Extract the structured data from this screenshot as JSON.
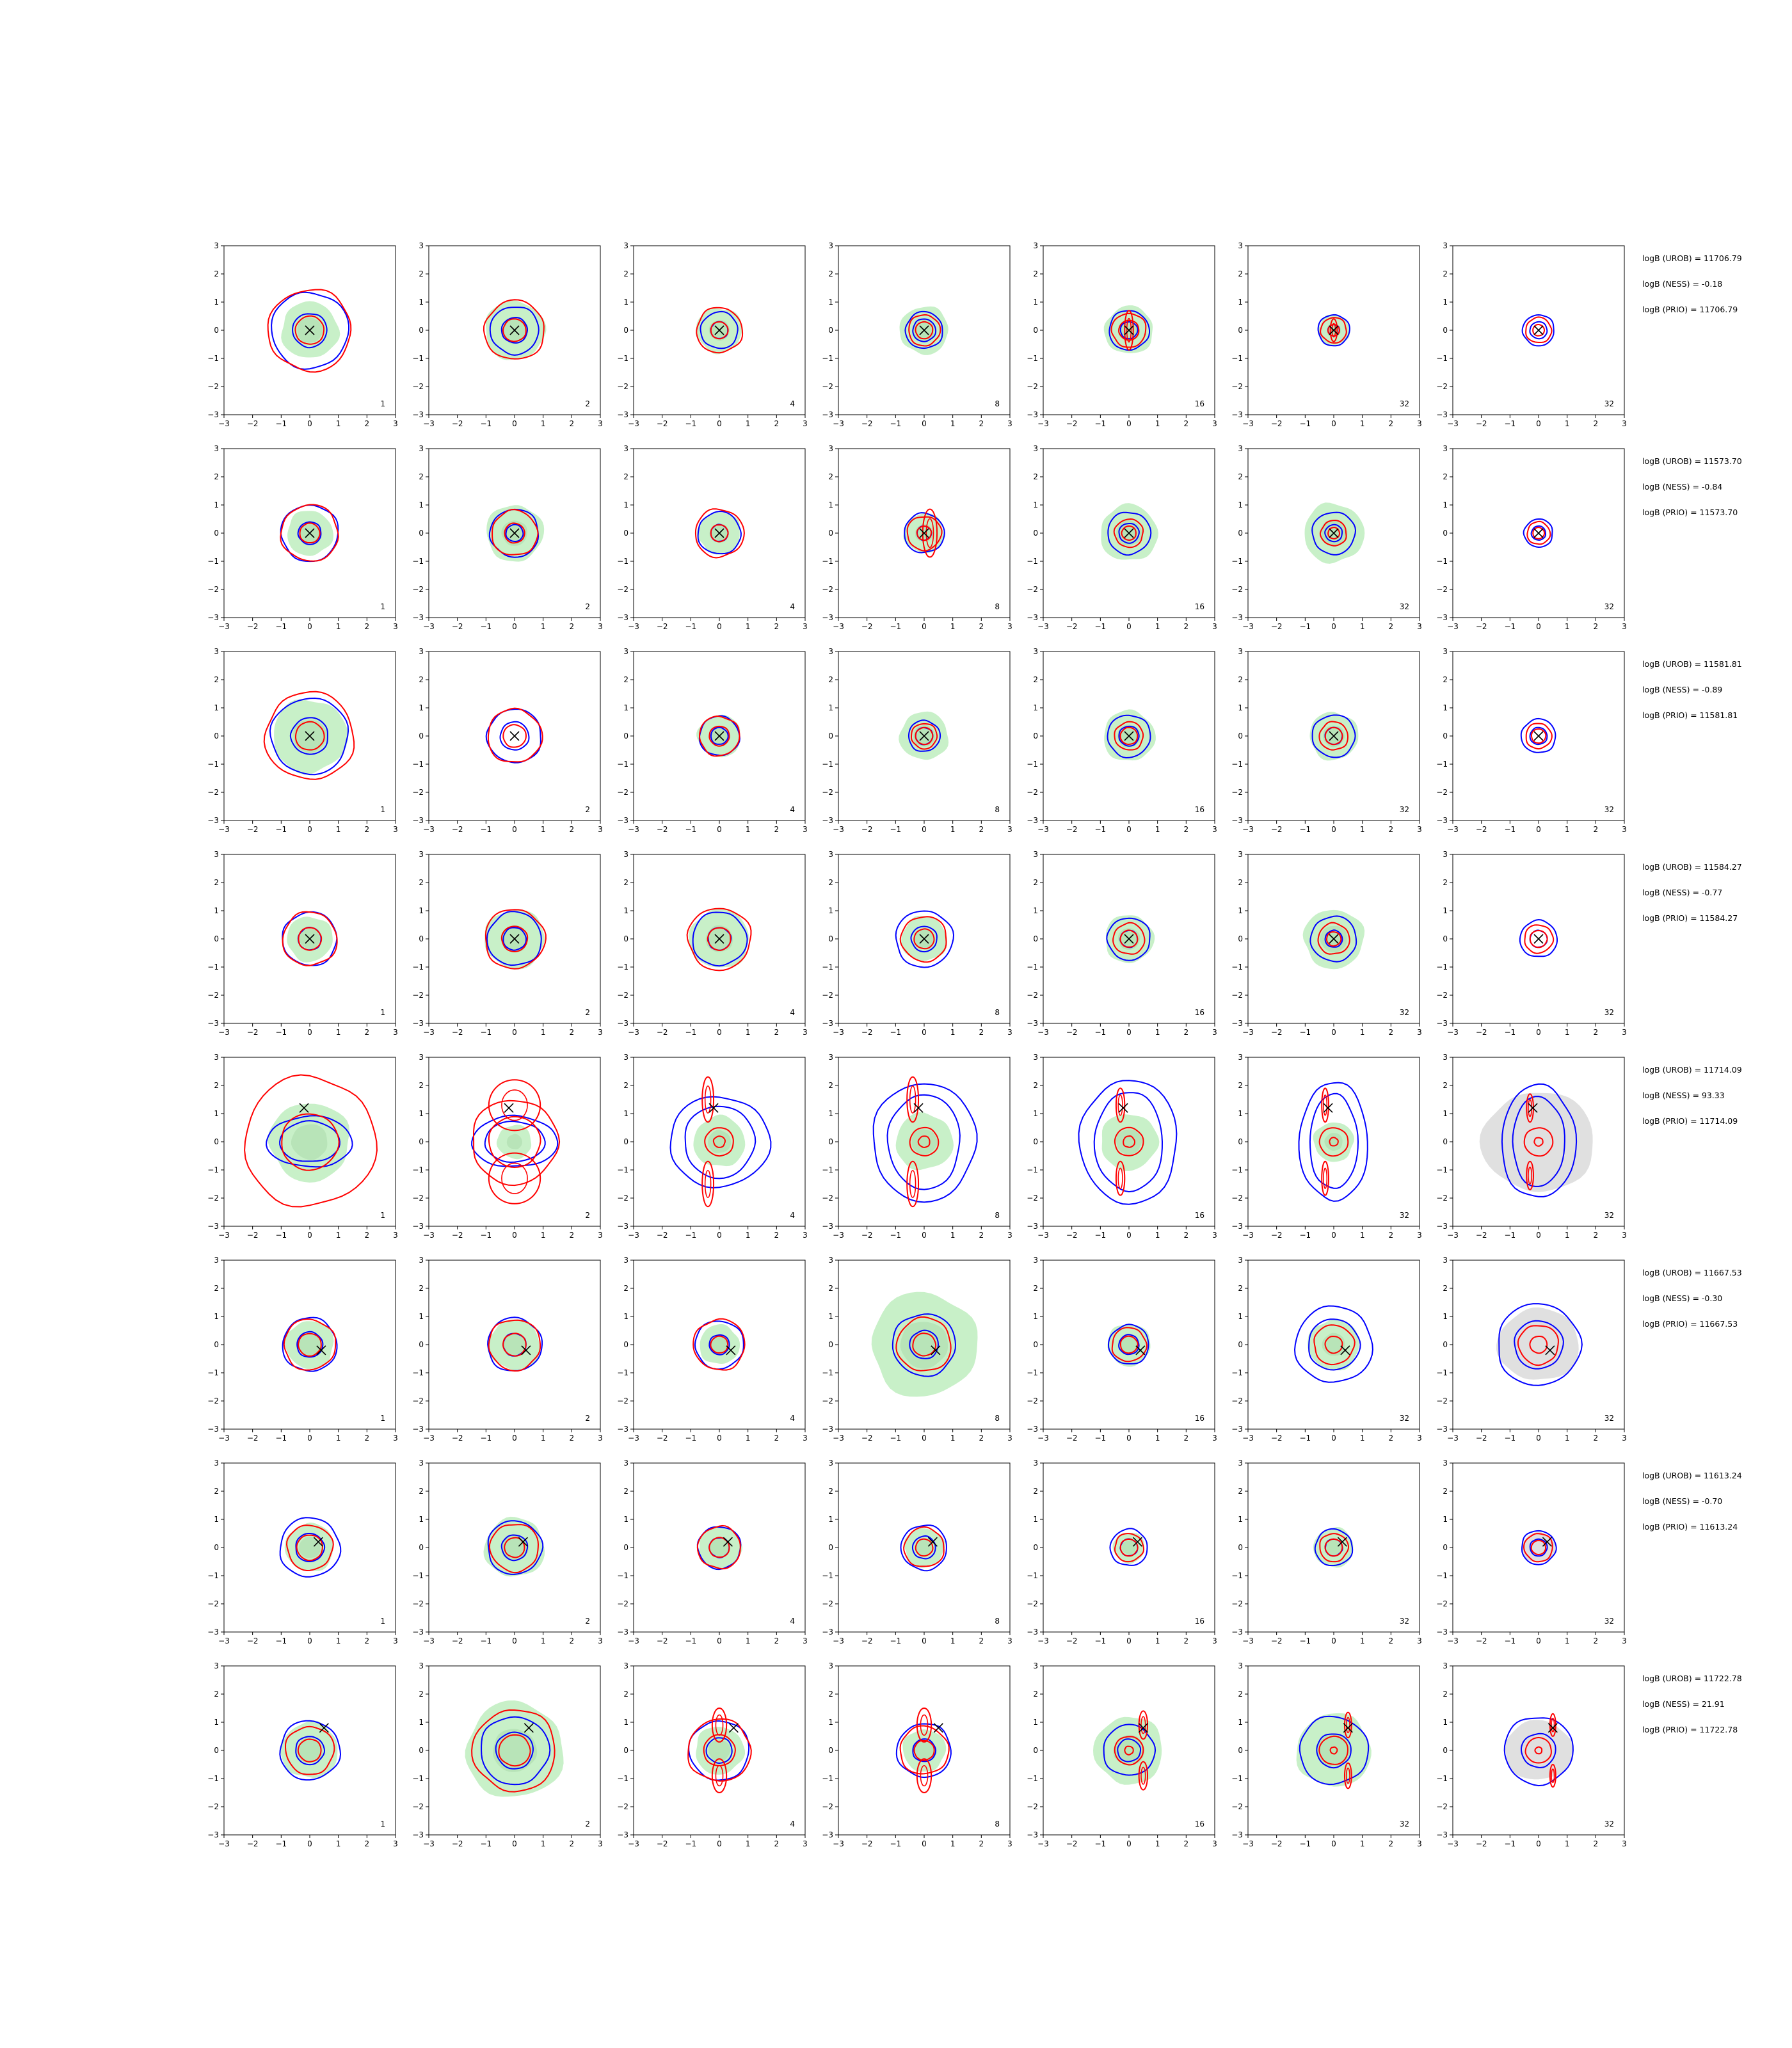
{
  "figure": {
    "axis_range": [
      -3,
      3
    ],
    "tick_labels": [
      "−3",
      "−2",
      "−1",
      "0",
      "1",
      "2",
      "3"
    ],
    "panel_labels": [
      "1",
      "2",
      "4",
      "8",
      "16",
      "32",
      "32"
    ],
    "colors": {
      "scatter_fill": "#c8f0c8",
      "fill_dense": "#a8d8a8",
      "gray_fill": "#d3d3d3",
      "contour_blue": "#0000ff",
      "contour_red": "#ff0000",
      "marker": "#000000"
    }
  },
  "rows": [
    {
      "logB_UROB": "logB (UROB) = 11706.79",
      "logB_NESS": "logB (NESS) = -0.18",
      "logB_PRIO": "logB (PRIO) = 11706.79"
    },
    {
      "logB_UROB": "logB (UROB) = 11573.70",
      "logB_NESS": "logB (NESS) = -0.84",
      "logB_PRIO": "logB (PRIO) = 11573.70"
    },
    {
      "logB_UROB": "logB (UROB) = 11581.81",
      "logB_NESS": "logB (NESS) = -0.89",
      "logB_PRIO": "logB (PRIO) = 11581.81"
    },
    {
      "logB_UROB": "logB (UROB) = 11584.27",
      "logB_NESS": "logB (NESS) = -0.77",
      "logB_PRIO": "logB (PRIO) = 11584.27"
    },
    {
      "logB_UROB": "logB (UROB) = 11714.09",
      "logB_NESS": "logB (NESS) = 93.33",
      "logB_PRIO": "logB (PRIO) = 11714.09"
    },
    {
      "logB_UROB": "logB (UROB) = 11667.53",
      "logB_NESS": "logB (NESS) = -0.30",
      "logB_PRIO": "logB (PRIO) = 11667.53"
    },
    {
      "logB_UROB": "logB (UROB) = 11613.24",
      "logB_NESS": "logB (NESS) = -0.70",
      "logB_PRIO": "logB (PRIO) = 11613.24"
    },
    {
      "logB_UROB": "logB (UROB) = 11722.78",
      "logB_NESS": "logB (NESS) = 21.91",
      "logB_PRIO": "logB (PRIO) = 11722.78"
    }
  ],
  "chart_data": {
    "type": "scatter",
    "layout": "grid of 8 rows x 7 columns of 2D density/contour panels",
    "xlim": [
      -3,
      3
    ],
    "ylim": [
      -3,
      3
    ],
    "grid": false,
    "rows": [
      {
        "marker": [
          0.0,
          0.0
        ],
        "gray_last": false,
        "panels": [
          {
            "fill": 1.0,
            "blue": [
              1.35,
              0.6
            ],
            "red": [
              1.45,
              0.5
            ],
            "extra": []
          },
          {
            "fill": 1.05,
            "blue": [
              0.85,
              0.45
            ],
            "red": [
              1.05,
              0.4
            ],
            "extra": []
          },
          {
            "fill": 0.8,
            "blue": [
              0.65,
              0.3
            ],
            "red": [
              0.8,
              0.3
            ],
            "extra": []
          },
          {
            "fill": 0.85,
            "blue": [
              0.65,
              0.4
            ],
            "red": [
              0.55,
              0.3
            ],
            "extra": []
          },
          {
            "fill": 0.85,
            "blue": [
              0.7,
              0.3
            ],
            "red": [
              0.6,
              0.35
            ],
            "extra": [
              [
                0,
                0,
                0.15,
                0.7
              ]
            ]
          },
          {
            "fill": 0.55,
            "blue": [
              0.55,
              0.2
            ],
            "red": [
              0.45,
              0.2
            ],
            "extra": [
              [
                0,
                0,
                0.12,
                0.4
              ]
            ]
          },
          {
            "fill": 0,
            "blue": [
              0.55,
              0.3
            ],
            "red": [
              0.45,
              0.2
            ],
            "extra": []
          }
        ]
      },
      {
        "marker": [
          0.0,
          0.0
        ],
        "gray_last": false,
        "panels": [
          {
            "fill": 0.8,
            "blue": [
              1.0,
              0.4
            ],
            "red": [
              1.0,
              0.35
            ],
            "extra": []
          },
          {
            "fill": 1.0,
            "blue": [
              0.85,
              0.3
            ],
            "red": [
              0.8,
              0.35
            ],
            "extra": []
          },
          {
            "fill": 0.75,
            "blue": [
              0.75,
              0.3
            ],
            "red": [
              0.85,
              0.3
            ],
            "extra": []
          },
          {
            "fill": 0.7,
            "blue": [
              0.7,
              0.25
            ],
            "red": [
              0.6,
              0.25
            ],
            "extra": [
              [
                0.2,
                0,
                0.25,
                0.85
              ]
            ]
          },
          {
            "fill": 1.0,
            "blue": [
              0.75,
              0.35
            ],
            "red": [
              0.5,
              0.25
            ],
            "extra": []
          },
          {
            "fill": 1.05,
            "blue": [
              0.75,
              0.3
            ],
            "red": [
              0.45,
              0.2
            ],
            "extra": []
          },
          {
            "fill": 0,
            "blue": [
              0.5,
              0.25
            ],
            "red": [
              0.4,
              0.2
            ],
            "extra": []
          }
        ]
      },
      {
        "marker": [
          0.0,
          0.0
        ],
        "gray_last": false,
        "panels": [
          {
            "fill": 1.3,
            "blue": [
              1.35,
              0.65
            ],
            "red": [
              1.55,
              0.5
            ],
            "extra": []
          },
          {
            "fill": 0,
            "blue": [
              0.95,
              0.5
            ],
            "red": [
              0.95,
              0.4
            ],
            "extra": []
          },
          {
            "fill": 0.75,
            "blue": [
              0.7,
              0.3
            ],
            "red": [
              0.7,
              0.35
            ],
            "extra": []
          },
          {
            "fill": 0.85,
            "blue": [
              0.55,
              0.3
            ],
            "red": [
              0.45,
              0.3
            ],
            "extra": []
          },
          {
            "fill": 0.9,
            "blue": [
              0.75,
              0.35
            ],
            "red": [
              0.5,
              0.3
            ],
            "extra": []
          },
          {
            "fill": 0.85,
            "blue": [
              0.75,
              0.3
            ],
            "red": [
              0.5,
              0.3
            ],
            "extra": []
          },
          {
            "fill": 0,
            "blue": [
              0.6,
              0.3
            ],
            "red": [
              0.45,
              0.25
            ],
            "extra": []
          }
        ]
      },
      {
        "marker": [
          0.0,
          0.0
        ],
        "gray_last": false,
        "panels": [
          {
            "fill": 0.8,
            "blue": [
              0.95,
              0.4
            ],
            "red": [
              0.95,
              0.4
            ],
            "extra": []
          },
          {
            "fill": 1.05,
            "blue": [
              0.95,
              0.4
            ],
            "red": [
              1.05,
              0.45
            ],
            "extra": []
          },
          {
            "fill": 1.05,
            "blue": [
              0.95,
              0.4
            ],
            "red": [
              1.1,
              0.4
            ],
            "extra": []
          },
          {
            "fill": 0.8,
            "blue": [
              1.0,
              0.45
            ],
            "red": [
              0.8,
              0.35
            ],
            "extra": []
          },
          {
            "fill": 0.85,
            "blue": [
              0.75,
              0.3
            ],
            "red": [
              0.55,
              0.3
            ],
            "extra": []
          },
          {
            "fill": 1.05,
            "blue": [
              0.8,
              0.3
            ],
            "red": [
              0.55,
              0.25
            ],
            "extra": []
          },
          {
            "fill": 0,
            "blue": [
              0.65,
              0.3
            ],
            "red": [
              0.5,
              0.3
            ],
            "extra": []
          }
        ]
      },
      {
        "marker": [
          -0.2,
          1.2
        ],
        "gray_last": true,
        "panels": [
          {
            "fill": 1.4,
            "blue": [
              1.5,
              0.9
            ],
            "red": [
              2.3,
              1.0
            ],
            "extra": []
          },
          {
            "fill": 0.6,
            "blue": [
              1.5,
              0.9
            ],
            "red": [
              1.5,
              0.9
            ],
            "extra": [
              [
                0,
                1.3,
                0.9,
                0.9
              ],
              [
                0,
                -1.3,
                0.9,
                0.9
              ]
            ]
          },
          {
            "fill": 0.9,
            "blue": [
              1.75,
              1.6
            ],
            "red": [
              0.2,
              0.5
            ],
            "extra": [
              [
                -0.4,
                1.5,
                0.2,
                0.8
              ],
              [
                -0.4,
                -1.5,
                0.2,
                0.8
              ]
            ]
          },
          {
            "fill": 1.0,
            "blue": [
              1.8,
              2.1
            ],
            "red": [
              0.2,
              0.5
            ],
            "extra": [
              [
                -0.4,
                1.5,
                0.2,
                0.8
              ],
              [
                -0.4,
                -1.5,
                0.2,
                0.8
              ]
            ]
          },
          {
            "fill": 1.0,
            "blue": [
              1.7,
              2.2
            ],
            "red": [
              0.2,
              0.5
            ],
            "extra": [
              [
                -0.3,
                1.3,
                0.15,
                0.6
              ],
              [
                -0.3,
                -1.3,
                0.15,
                0.6
              ]
            ]
          },
          {
            "fill": 0.7,
            "blue": [
              1.2,
              2.1
            ],
            "red": [
              0.15,
              0.5
            ],
            "extra": [
              [
                -0.3,
                1.3,
                0.12,
                0.6
              ],
              [
                -0.3,
                -1.3,
                0.12,
                0.6
              ]
            ]
          },
          {
            "fill": 0,
            "blue": [
              1.3,
              2.0
            ],
            "red": [
              0.15,
              0.5
            ],
            "extra": [
              [
                -0.3,
                1.2,
                0.12,
                0.5
              ],
              [
                -0.3,
                -1.2,
                0.12,
                0.5
              ]
            ]
          }
        ]
      },
      {
        "marker": [
          0.4,
          -0.2
        ],
        "gray_last": true,
        "panels": [
          {
            "fill": 0.85,
            "blue": [
              0.95,
              0.45
            ],
            "red": [
              0.9,
              0.4
            ],
            "extra": []
          },
          {
            "fill": 0.9,
            "blue": [
              0.95,
              0.4
            ],
            "red": [
              0.9,
              0.4
            ],
            "extra": []
          },
          {
            "fill": 0.7,
            "blue": [
              0.85,
              0.35
            ],
            "red": [
              0.9,
              0.3
            ],
            "extra": []
          },
          {
            "fill": 1.85,
            "blue": [
              1.1,
              0.5
            ],
            "red": [
              0.95,
              0.4
            ],
            "extra": []
          },
          {
            "fill": 0.75,
            "blue": [
              0.7,
              0.35
            ],
            "red": [
              0.6,
              0.3
            ],
            "extra": []
          },
          {
            "fill": 0.9,
            "blue": [
              1.35,
              0.9
            ],
            "red": [
              0.7,
              0.3
            ],
            "extra": []
          },
          {
            "fill": 0,
            "blue": [
              1.45,
              0.85
            ],
            "red": [
              0.7,
              0.3
            ],
            "extra": []
          }
        ]
      },
      {
        "marker": [
          0.3,
          0.2
        ],
        "gray_last": true,
        "panels": [
          {
            "fill": 0.85,
            "blue": [
              1.05,
              0.5
            ],
            "red": [
              0.8,
              0.45
            ],
            "extra": []
          },
          {
            "fill": 1.05,
            "blue": [
              0.95,
              0.45
            ],
            "red": [
              0.85,
              0.35
            ],
            "extra": []
          },
          {
            "fill": 0.75,
            "blue": [
              0.75,
              0.35
            ],
            "red": [
              0.75,
              0.35
            ],
            "extra": []
          },
          {
            "fill": 0.7,
            "blue": [
              0.8,
              0.4
            ],
            "red": [
              0.7,
              0.3
            ],
            "extra": []
          },
          {
            "fill": 0.55,
            "blue": [
              0.65,
              0.3
            ],
            "red": [
              0.5,
              0.3
            ],
            "extra": []
          },
          {
            "fill": 0.7,
            "blue": [
              0.65,
              0.3
            ],
            "red": [
              0.5,
              0.3
            ],
            "extra": []
          },
          {
            "fill": 0,
            "blue": [
              0.6,
              0.3
            ],
            "red": [
              0.5,
              0.25
            ],
            "extra": []
          }
        ]
      },
      {
        "marker": [
          0.5,
          0.8
        ],
        "gray_last": true,
        "panels": [
          {
            "fill": 1.0,
            "blue": [
              1.05,
              0.5
            ],
            "red": [
              0.85,
              0.4
            ],
            "extra": []
          },
          {
            "fill": 1.7,
            "blue": [
              1.2,
              0.65
            ],
            "red": [
              1.45,
              0.55
            ],
            "extra": []
          },
          {
            "fill": 0.85,
            "blue": [
              1.05,
              0.45
            ],
            "red": [
              1.1,
              0.55
            ],
            "extra": [
              [
                0,
                0.9,
                0.25,
                0.6
              ],
              [
                0,
                -0.9,
                0.25,
                0.6
              ]
            ]
          },
          {
            "fill": 0.75,
            "blue": [
              0.95,
              0.4
            ],
            "red": [
              0.85,
              0.35
            ],
            "extra": [
              [
                0,
                0.9,
                0.25,
                0.6
              ],
              [
                0,
                -0.9,
                0.25,
                0.6
              ]
            ]
          },
          {
            "fill": 1.2,
            "blue": [
              0.9,
              0.4
            ],
            "red": [
              0.15,
              0.5
            ],
            "extra": [
              [
                0.5,
                0.9,
                0.15,
                0.5
              ],
              [
                0.5,
                -0.9,
                0.15,
                0.5
              ]
            ]
          },
          {
            "fill": 1.3,
            "blue": [
              1.2,
              0.6
            ],
            "red": [
              0.12,
              0.5
            ],
            "extra": [
              [
                0.5,
                0.9,
                0.12,
                0.45
              ],
              [
                0.5,
                -0.9,
                0.12,
                0.45
              ]
            ]
          },
          {
            "fill": 0,
            "blue": [
              1.2,
              0.6
            ],
            "red": [
              0.12,
              0.45
            ],
            "extra": [
              [
                0.5,
                0.9,
                0.1,
                0.4
              ],
              [
                0.5,
                -0.9,
                0.1,
                0.4
              ]
            ]
          }
        ]
      }
    ]
  }
}
